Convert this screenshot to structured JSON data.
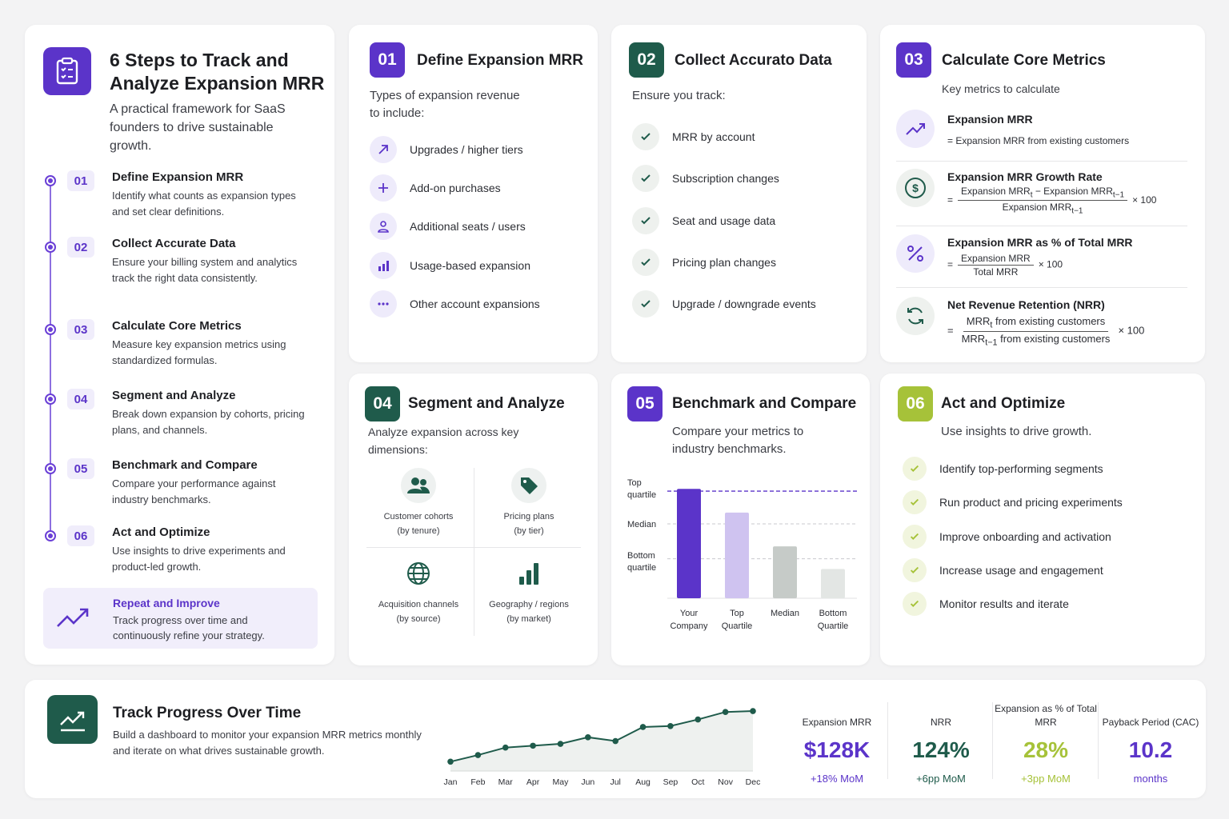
{
  "colors": {
    "purple": "#5b34c9",
    "green": "#1f5b4b",
    "lime": "#a6c239",
    "blue_bar": "#5b34c9"
  },
  "intro": {
    "title_line1": "6 Steps to Track and",
    "title_line2": "Analyze Expansion MRR",
    "subtitle": "A practical framework for SaaS founders to drive sustainable growth.",
    "icon": "clipboard-checklist-icon"
  },
  "steps": [
    {
      "num": "01",
      "title": "Define Expansion MRR",
      "desc": "Identify what counts as expansion types and set clear definitions."
    },
    {
      "num": "02",
      "title": "Collect Accurate Data",
      "desc": "Ensure your billing system and analytics track the right data consistently."
    },
    {
      "num": "03",
      "title": "Calculate Core Metrics",
      "desc": "Measure key expansion metrics using standardized formulas."
    },
    {
      "num": "04",
      "title": "Segment and Analyze",
      "desc": "Break down expansion by cohorts, pricing plans, and channels."
    },
    {
      "num": "05",
      "title": "Benchmark and Compare",
      "desc": "Compare your performance against industry benchmarks."
    },
    {
      "num": "06",
      "title": "Act and Optimize",
      "desc": "Use insights to drive experiments and product-led growth."
    }
  ],
  "repeat": {
    "title": "Repeat and Improve",
    "desc": "Track progress over time and continuously refine your strategy."
  },
  "card1": {
    "num": "01",
    "title": "Define Expansion MRR",
    "intro": "Types of expansion revenue to include:",
    "items": [
      "Upgrades / higher tiers",
      "Add-on purchases",
      "Additional seats / users",
      "Usage-based expansion",
      "Other account expansions"
    ]
  },
  "card2": {
    "num": "02",
    "title": "Collect Accurato Data",
    "intro": "Ensure you track:",
    "items": [
      "MRR by account",
      "Subscription changes",
      "Seat and usage data",
      "Pricing plan changes",
      "Upgrade / downgrade events"
    ]
  },
  "card3": {
    "num": "03",
    "title": "Calculate Core Metrics",
    "intro": "Key metrics to calculate",
    "m1": {
      "title": "Expansion MRR",
      "formula": "= Expansion MRR from existing customers"
    },
    "m2": {
      "title": "Expansion MRR Growth Rate",
      "eq": "=",
      "num": "Expansion MRR",
      "num_sub": "t",
      "minus": " − Expansion MRR",
      "num_sub2": "t−1",
      "den": "Expansion MRR",
      "den_sub": "t−1",
      "mult": "× 100"
    },
    "m3": {
      "title": "Expansion MRR as % of Total MRR",
      "eq": "=",
      "num": "Expansion MRR",
      "den": "Total MRR",
      "mult": "× 100"
    },
    "m4": {
      "title": "Net Revenue Retention (NRR)",
      "eq": "=",
      "num": "MRR",
      "num_sub": "t",
      "num_rest": " from existing customers",
      "den": "MRR",
      "den_sub": "t−1",
      "den_rest": " from existing customers",
      "mult": "× 100"
    }
  },
  "card4": {
    "num": "04",
    "title": "Segment and Analyze",
    "intro": "Analyze expansion across key dimensions:",
    "segs": [
      {
        "l1": "Customer cohorts",
        "l2": "(by tenure)"
      },
      {
        "l1": "Pricing plans",
        "l2": "(by tier)"
      },
      {
        "l1": "Acquisition channels",
        "l2": "(by source)"
      },
      {
        "l1": "Geography / regions",
        "l2": "(by market)"
      }
    ]
  },
  "card5": {
    "num": "05",
    "title": "Benchmark and Compare",
    "intro": "Compare your metrics to industry benchmarks.",
    "ylabels": {
      "top1": "Top",
      "top2": "quartile",
      "median": "Median",
      "bot1": "Bottom",
      "bot2": "quartile"
    }
  },
  "card6": {
    "num": "06",
    "title": "Act and Optimize",
    "intro": "Use insights to drive growth.",
    "items": [
      "Identify top-performing segments",
      "Run product and pricing experiments",
      "Improve onboarding and activation",
      "Increase usage and engagement",
      "Monitor results and iterate"
    ]
  },
  "progress": {
    "title": "Track Progress Over Time",
    "desc": "Build a dashboard to monitor your expansion MRR metrics monthly and iterate on what drives sustainable growth."
  },
  "stats": [
    {
      "label": "Expansion MRR",
      "value": "$128K",
      "delta": "+18% MoM",
      "color": "#5b34c9"
    },
    {
      "label": "NRR",
      "value": "124%",
      "delta": "+6pp MoM",
      "color": "#1f5b4b"
    },
    {
      "label": "Expansion as % of Total MRR",
      "value": "28%",
      "delta": "+3pp MoM",
      "color": "#a6c239"
    },
    {
      "label": "Payback Period (CAC)",
      "value": "10.2",
      "delta": "months",
      "color": "#5b34c9"
    }
  ],
  "chart_data": [
    {
      "type": "bar",
      "title": "",
      "categories": [
        "Your Company",
        "Top Quartile",
        "Median",
        "Bottom Quartile"
      ],
      "cat_lines": [
        [
          "Your",
          "Company"
        ],
        [
          "Top",
          "Quartile"
        ],
        [
          "Median",
          ""
        ],
        [
          "Bottom",
          "Quartile"
        ]
      ],
      "values": [
        0.97,
        0.76,
        0.46,
        0.26
      ],
      "colors": [
        "#5b34c9",
        "#cfc3f0",
        "#c6cbc8",
        "#e3e6e4"
      ],
      "ylim": [
        0,
        1
      ],
      "reference_lines": {
        "Top quartile": 0.95,
        "Median": 0.66,
        "Bottom quartile": 0.35
      },
      "ylabel": "",
      "xlabel": ""
    },
    {
      "type": "area",
      "title": "",
      "categories": [
        "Jan",
        "Feb",
        "Mar",
        "Apr",
        "May",
        "Jun",
        "Jul",
        "Aug",
        "Sep",
        "Oct",
        "Nov",
        "Dec"
      ],
      "values": [
        10,
        17,
        25,
        27,
        29,
        36,
        32,
        47,
        48,
        55,
        63,
        64
      ],
      "ylim": [
        0,
        70
      ],
      "grid": false,
      "ylabel": "",
      "xlabel": ""
    }
  ]
}
